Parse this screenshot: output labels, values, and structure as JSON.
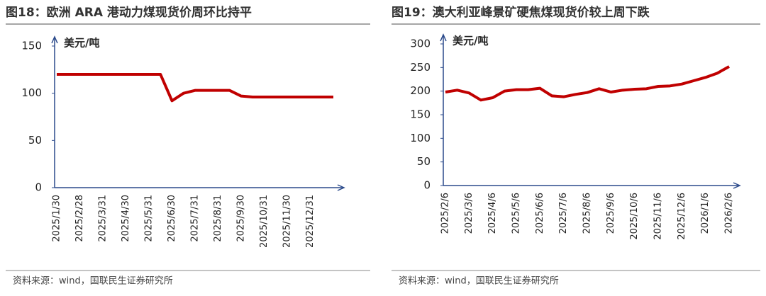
{
  "chart_data": [
    {
      "type": "line",
      "title": "图18：欧洲 ARA 港动力煤现货价周环比持平",
      "y_label": "美元/吨",
      "source": "资料来源：wind，国联民生证券研究所",
      "categories": [
        "2025/1/30",
        null,
        "2025/2/28",
        null,
        "2025/3/31",
        null,
        "2025/4/30",
        null,
        "2025/5/31",
        null,
        "2025/6/30",
        null,
        "2025/7/31",
        null,
        "2025/8/31",
        null,
        "2025/9/30",
        null,
        "2025/10/31",
        null,
        "2025/11/30",
        null,
        "2025/12/31",
        null,
        null
      ],
      "series": [
        {
          "name": "ARA",
          "color": "#c00000",
          "values": [
            120,
            120,
            120,
            120,
            120,
            120,
            120,
            120,
            120,
            120,
            92,
            100,
            103,
            103,
            103,
            103,
            97,
            96,
            96,
            96,
            96,
            96,
            96,
            96,
            96
          ]
        }
      ],
      "ylim": [
        0,
        150
      ],
      "yticks": [
        0,
        50,
        100,
        150
      ],
      "grid": false
    },
    {
      "type": "line",
      "title": "图19：澳大利亚峰景矿硬焦煤现货价较上周下跌",
      "y_label": "美元/吨",
      "source": "资料来源：wind，国联民生证券研究所",
      "categories": [
        "2025/2/6",
        null,
        "2025/3/6",
        null,
        "2025/4/6",
        null,
        "2025/5/6",
        null,
        "2025/6/6",
        null,
        "2025/7/6",
        null,
        "2025/8/6",
        null,
        "2025/9/6",
        null,
        "2025/10/6",
        null,
        "2025/11/6",
        null,
        "2025/12/6",
        null,
        "2026/1/6",
        null,
        "2026/2/6"
      ],
      "series": [
        {
          "name": "峰景矿硬焦煤",
          "color": "#c00000",
          "values": [
            198,
            202,
            196,
            181,
            186,
            200,
            203,
            203,
            206,
            190,
            188,
            193,
            197,
            205,
            198,
            202,
            204,
            205,
            210,
            211,
            215,
            222,
            229,
            238,
            252
          ]
        }
      ],
      "ylim": [
        0,
        300
      ],
      "yticks": [
        0,
        50,
        100,
        150,
        200,
        250,
        300
      ],
      "grid": false
    }
  ]
}
